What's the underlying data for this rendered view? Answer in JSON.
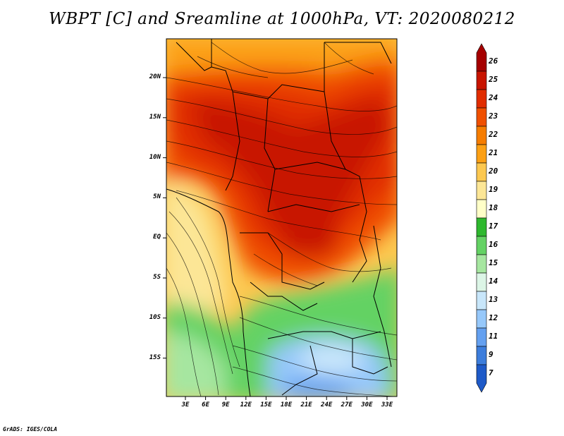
{
  "title": "WBPT [C] and Sreamline at 1000hPa, VT: 2020080212",
  "credit": "GrADS: IGES/COLA",
  "map": {
    "lat_labels": [
      "20N",
      "15N",
      "10N",
      "5N",
      "EQ",
      "5S",
      "10S",
      "15S"
    ],
    "lon_labels": [
      "3E",
      "6E",
      "9E",
      "12E",
      "15E",
      "18E",
      "21E",
      "24E",
      "27E",
      "30E",
      "33E"
    ]
  },
  "colorbar": {
    "levels": [
      "26",
      "25",
      "24",
      "23",
      "22",
      "21",
      "20",
      "19",
      "18",
      "17",
      "16",
      "15",
      "14",
      "13",
      "12",
      "11",
      "9",
      "7"
    ],
    "colors": [
      "#a50000",
      "#c81400",
      "#e12d00",
      "#f05000",
      "#f67d00",
      "#fca014",
      "#fcc850",
      "#fce696",
      "#ffffc8",
      "#2eb82e",
      "#64d264",
      "#a6e6a0",
      "#dcf5e6",
      "#c8e6fa",
      "#96c8fa",
      "#64a0f0",
      "#3c7ddc",
      "#1e5ac8"
    ]
  }
}
